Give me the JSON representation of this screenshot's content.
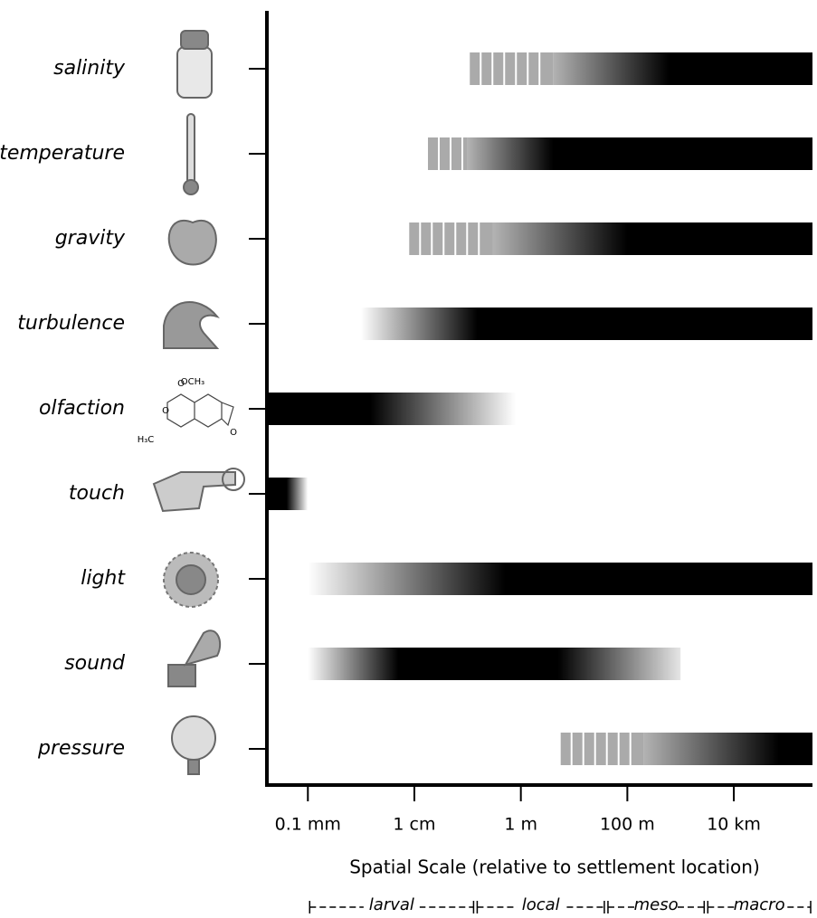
{
  "chart_data": {
    "type": "gradient-range",
    "xlabel": "Spatial Scale (relative to settlement location)",
    "log_x": true,
    "xlim": [
      1.7e-05,
      300000
    ],
    "xticks": [
      {
        "value": 0.0001,
        "label": "0.1 mm"
      },
      {
        "value": 0.01,
        "label": "1 cm"
      },
      {
        "value": 1,
        "label": "1 m"
      },
      {
        "value": 100,
        "label": "100 m"
      },
      {
        "value": 10000,
        "label": "10 km"
      }
    ],
    "bar_color": "#000000",
    "dashed_color": "#aaaaaa",
    "categories": [
      "salinity",
      "temperature",
      "gravity",
      "turbulence",
      "olfaction",
      "touch",
      "light",
      "sound",
      "pressure"
    ],
    "rows": [
      {
        "dashed": {
          "from": 0.11,
          "to": 4
        },
        "profile": [
          {
            "x": 4,
            "level": 0.3
          },
          {
            "x": 600,
            "level": 1
          },
          {
            "x": 300000,
            "level": 1
          }
        ]
      },
      {
        "dashed": {
          "from": 0.018,
          "to": 0.1
        },
        "profile": [
          {
            "x": 0.1,
            "level": 0.3
          },
          {
            "x": 4,
            "level": 1
          },
          {
            "x": 300000,
            "level": 1
          }
        ]
      },
      {
        "dashed": {
          "from": 0.008,
          "to": 0.3
        },
        "profile": [
          {
            "x": 0.3,
            "level": 0.3
          },
          {
            "x": 100,
            "level": 1
          },
          {
            "x": 300000,
            "level": 1
          }
        ]
      },
      {
        "profile": [
          {
            "x": 0.001,
            "level": 0
          },
          {
            "x": 0.15,
            "level": 1
          },
          {
            "x": 300000,
            "level": 1
          }
        ]
      },
      {
        "profile": [
          {
            "x": 1.7e-05,
            "level": 1
          },
          {
            "x": 0.0015,
            "level": 1
          },
          {
            "x": 0.8,
            "level": 0
          }
        ]
      },
      {
        "profile": [
          {
            "x": 1.7e-05,
            "level": 1
          },
          {
            "x": 4e-05,
            "level": 1
          },
          {
            "x": 0.0001,
            "level": 0
          }
        ]
      },
      {
        "profile": [
          {
            "x": 0.0001,
            "level": 0
          },
          {
            "x": 0.5,
            "level": 1
          },
          {
            "x": 300000,
            "level": 1
          }
        ]
      },
      {
        "profile": [
          {
            "x": 0.0001,
            "level": 0
          },
          {
            "x": 0.005,
            "level": 1
          },
          {
            "x": 5,
            "level": 1
          },
          {
            "x": 1000,
            "level": 0.1
          }
        ]
      },
      {
        "dashed": {
          "from": 5.6,
          "to": 200
        },
        "profile": [
          {
            "x": 200,
            "level": 0.3
          },
          {
            "x": 70000,
            "level": 1
          },
          {
            "x": 300000,
            "level": 1
          }
        ]
      }
    ],
    "scale_ranges": [
      {
        "name": "larval",
        "from": 0.0001,
        "to": 0.14
      },
      {
        "name": "local",
        "from": 0.14,
        "to": 40
      },
      {
        "name": "meso",
        "from": 40,
        "to": 3000
      },
      {
        "name": "macro",
        "from": 3000,
        "to": 300000
      }
    ],
    "molecule_labels": [
      "O",
      "OCH₃",
      "H₃C",
      "O",
      "O"
    ]
  }
}
